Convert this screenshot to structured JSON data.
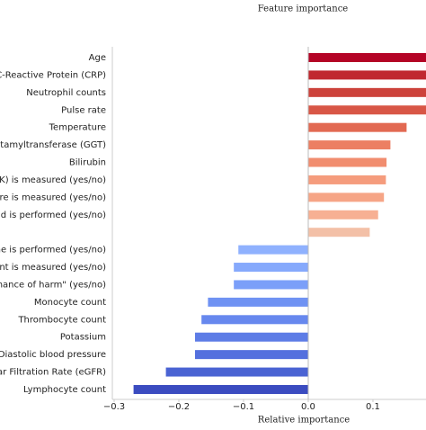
{
  "chart_data": {
    "type": "barh",
    "title": "Feature importance",
    "xlabel": "Relative importance",
    "categories": [
      "Age",
      "C-Reactive Protein (CRP)",
      "Neutrophil counts",
      "Pulse rate",
      "Temperature",
      "utamyltransferase (GGT)",
      "Bilirubin",
      "CK) is measured (yes/no)",
      "ure is measured (yes/no)",
      "nd is performed (yes/no)",
      null,
      "ne is performed (yes/no)",
      "unt is measured (yes/no)",
      "chance of harm\" (yes/no)",
      "Monocyte count",
      "Thrombocyte count",
      "Potassium",
      "Diastolic blood pressure",
      "ar Filtration Rate (eGFR)",
      "Lymphocyte count"
    ],
    "values": [
      0.19,
      0.19,
      0.19,
      0.19,
      0.152,
      0.127,
      0.121,
      0.12,
      0.117,
      0.108,
      0.095,
      -0.108,
      -0.115,
      -0.115,
      -0.155,
      -0.165,
      -0.175,
      -0.175,
      -0.22,
      -0.27
    ],
    "colors": [
      "#b40426",
      "#c0282f",
      "#cd423b",
      "#d85646",
      "#e26952",
      "#ec7f63",
      "#f18d6f",
      "#f59c7d",
      "#f6a586",
      "#f7b093",
      "#f3c0a7",
      "#8fb1fe",
      "#86a9fc",
      "#7b9ff9",
      "#6f92f3",
      "#6788ee",
      "#5d7ce6",
      "#5470de",
      "#4a63d3",
      "#3b4cc0"
    ],
    "xlim": [
      -0.3,
      0.182
    ],
    "xticks": [
      {
        "value": -0.3,
        "label": "−0.3"
      },
      {
        "value": -0.2,
        "label": "−0.2"
      },
      {
        "value": -0.1,
        "label": "−0.1"
      },
      {
        "value": 0,
        "label": "0.0"
      },
      0.1
    ]
  }
}
